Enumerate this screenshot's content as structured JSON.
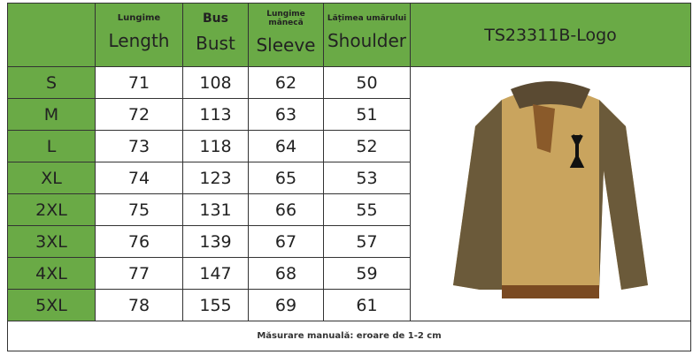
{
  "header": {
    "title": "TS23311B-Logo",
    "columns": [
      {
        "ro": "Lungime",
        "en": "Length"
      },
      {
        "ro": "Bus",
        "en": "Bust"
      },
      {
        "ro": "Lungime mânecă",
        "en": "Sleeve"
      },
      {
        "ro": "Lățimea umărului",
        "en": "Shoulder"
      }
    ]
  },
  "rows": [
    {
      "size": "S",
      "length": "71",
      "bust": "108",
      "sleeve": "62",
      "shoulder": "50"
    },
    {
      "size": "M",
      "length": "72",
      "bust": "113",
      "sleeve": "63",
      "shoulder": "51"
    },
    {
      "size": "L",
      "length": "73",
      "bust": "118",
      "sleeve": "64",
      "shoulder": "52"
    },
    {
      "size": "XL",
      "length": "74",
      "bust": "123",
      "sleeve": "65",
      "shoulder": "53"
    },
    {
      "size": "2XL",
      "length": "75",
      "bust": "131",
      "sleeve": "66",
      "shoulder": "55"
    },
    {
      "size": "3XL",
      "length": "76",
      "bust": "139",
      "sleeve": "67",
      "shoulder": "57"
    },
    {
      "size": "4XL",
      "length": "77",
      "bust": "147",
      "sleeve": "68",
      "shoulder": "59"
    },
    {
      "size": "5XL",
      "length": "78",
      "bust": "155",
      "sleeve": "69",
      "shoulder": "61"
    }
  ],
  "footer": "Măsurare manuală: eroare de 1-2 cm",
  "colors": {
    "header_green": "#6aaa46"
  }
}
